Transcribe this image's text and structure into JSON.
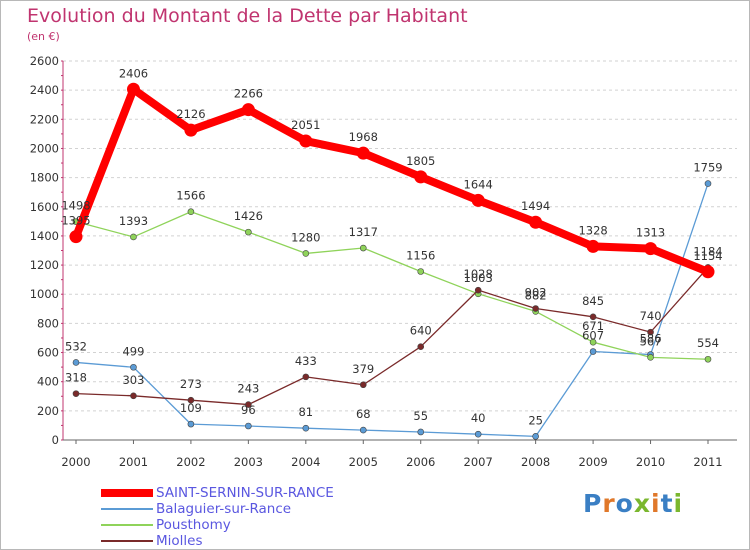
{
  "title": "Evolution du Montant de la Dette par Habitant",
  "subtitle": "(en €)",
  "logo": {
    "text": "Proxiti",
    "colors": [
      "#3a7fc4",
      "#e0782a",
      "#3a7fc4",
      "#7ab72e",
      "#e0782a",
      "#3a7fc4",
      "#7ab72e"
    ]
  },
  "chart_data": {
    "type": "line",
    "categories": [
      "2000",
      "2001",
      "2002",
      "2003",
      "2004",
      "2005",
      "2006",
      "2007",
      "2008",
      "2009",
      "2010",
      "2011"
    ],
    "ylim": [
      0,
      2600
    ],
    "yticks": [
      0,
      200,
      400,
      600,
      800,
      1000,
      1200,
      1400,
      1600,
      1800,
      2000,
      2200,
      2400,
      2600
    ],
    "grid": "horizontal dashed",
    "legend_position": "bottom-left",
    "series": [
      {
        "name": "SAINT-SERNIN-SUR-RANCE",
        "color": "#ff0000",
        "values": [
          1395,
          2406,
          2126,
          2266,
          2051,
          1968,
          1805,
          1644,
          1494,
          1328,
          1313,
          1154
        ]
      },
      {
        "name": "Balaguier-sur-Rance",
        "color": "#5b9bd5",
        "values": [
          532,
          499,
          109,
          96,
          81,
          68,
          55,
          40,
          25,
          607,
          586,
          1759
        ]
      },
      {
        "name": "Pousthomy",
        "color": "#8fd35a",
        "values": [
          1498,
          1393,
          1566,
          1426,
          1280,
          1317,
          1156,
          1003,
          882,
          671,
          567,
          554
        ]
      },
      {
        "name": "Miolles",
        "color": "#7a2a2a",
        "values": [
          318,
          303,
          273,
          243,
          433,
          379,
          640,
          1028,
          902,
          845,
          740,
          1184
        ]
      }
    ]
  }
}
